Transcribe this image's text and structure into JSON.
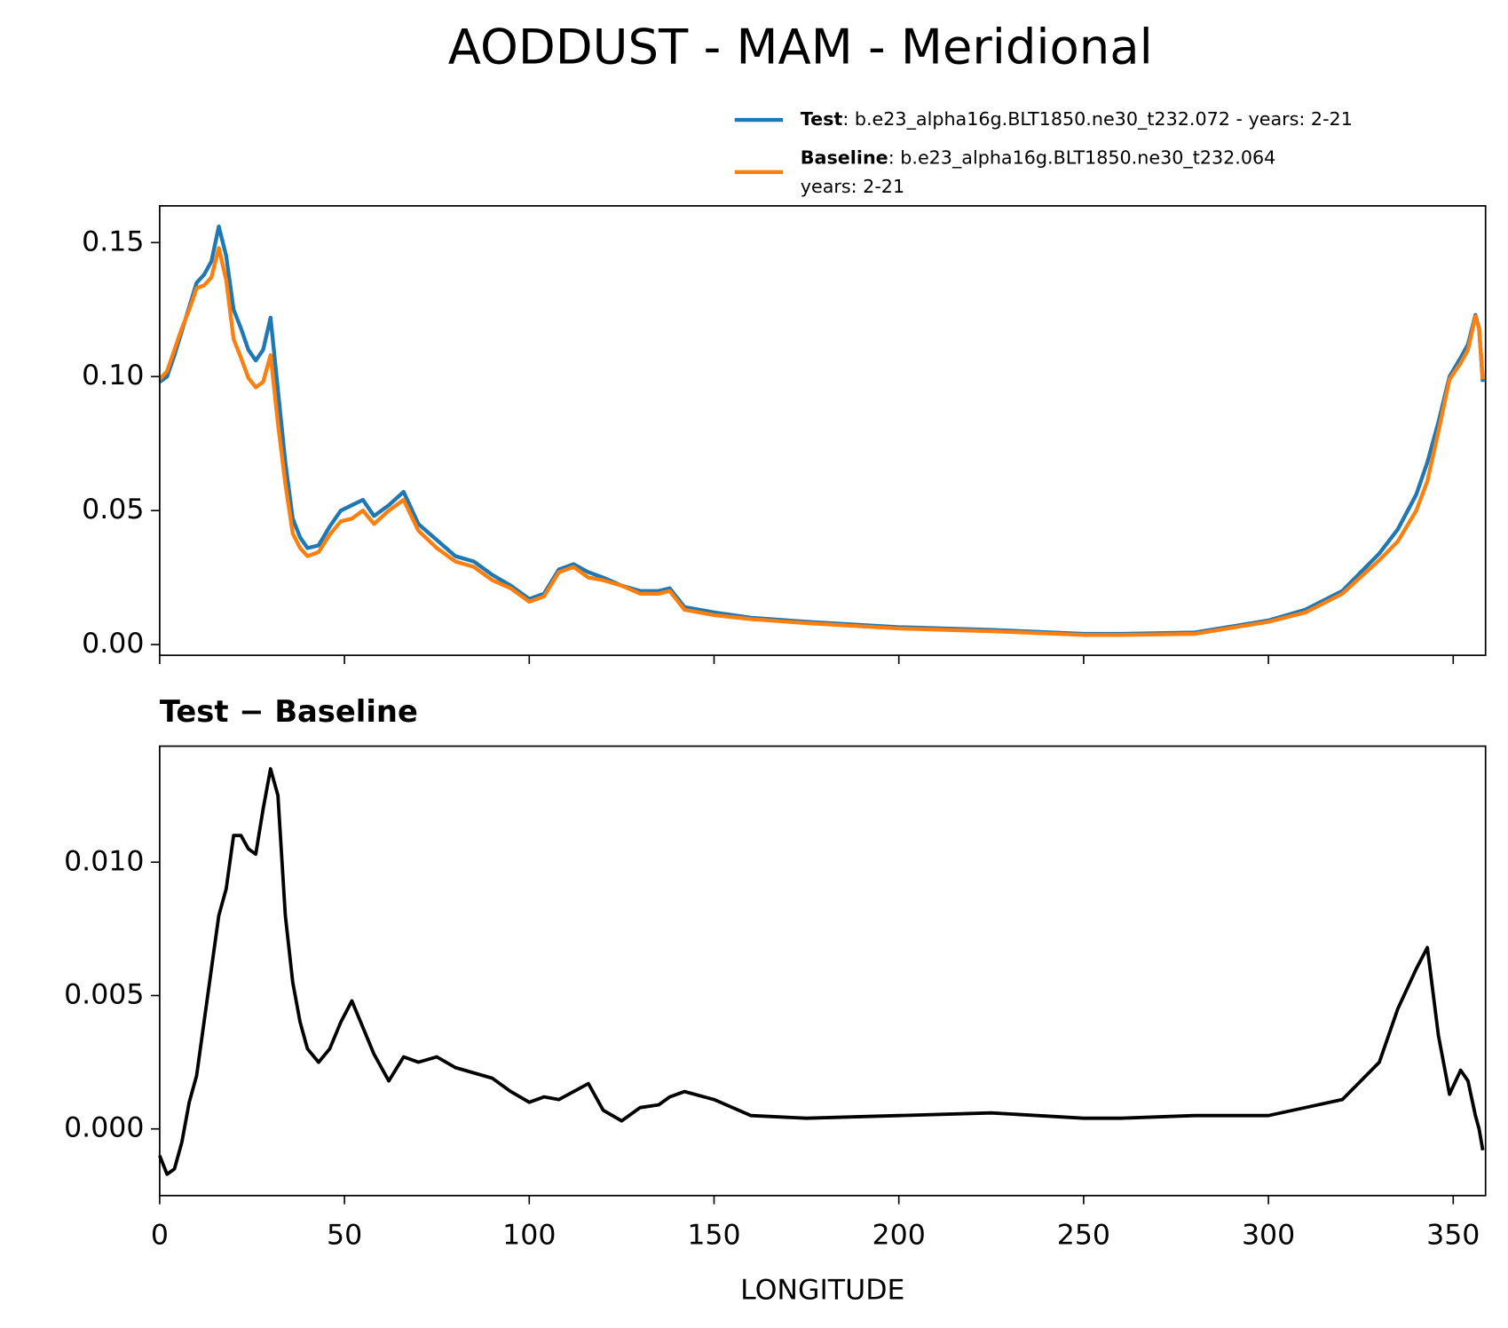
{
  "chart_data": [
    {
      "type": "line",
      "title": "AODDUST - MAM - Meridional",
      "x": [
        0,
        2,
        4,
        6,
        8,
        10,
        12,
        14,
        16,
        18,
        20,
        22,
        24,
        26,
        28,
        30,
        32,
        34,
        36,
        38,
        40,
        43,
        46,
        49,
        52,
        55,
        58,
        62,
        66,
        70,
        75,
        80,
        85,
        90,
        95,
        100,
        104,
        108,
        112,
        116,
        120,
        125,
        130,
        135,
        138,
        142,
        150,
        160,
        175,
        200,
        225,
        250,
        260,
        280,
        300,
        310,
        320,
        330,
        335,
        340,
        343,
        346,
        349,
        352,
        354,
        356,
        357,
        358
      ],
      "series": [
        {
          "name": "Test",
          "description": [
            ": b.e23_alpha16g.BLT1850.ne30_t232.072 - years: 2-21"
          ],
          "color": "#1f77b4",
          "values": [
            0.098,
            0.1,
            0.108,
            0.117,
            0.126,
            0.135,
            0.138,
            0.143,
            0.156,
            0.145,
            0.125,
            0.118,
            0.11,
            0.106,
            0.11,
            0.122,
            0.095,
            0.068,
            0.047,
            0.04,
            0.036,
            0.037,
            0.044,
            0.05,
            0.052,
            0.054,
            0.048,
            0.052,
            0.057,
            0.045,
            0.039,
            0.033,
            0.031,
            0.026,
            0.022,
            0.017,
            0.019,
            0.028,
            0.03,
            0.027,
            0.025,
            0.022,
            0.02,
            0.02,
            0.021,
            0.014,
            0.012,
            0.01,
            0.0085,
            0.0065,
            0.0055,
            0.004,
            0.004,
            0.0045,
            0.009,
            0.013,
            0.02,
            0.034,
            0.043,
            0.056,
            0.068,
            0.083,
            0.1,
            0.107,
            0.112,
            0.123,
            0.118,
            0.098
          ]
        },
        {
          "name": "Baseline",
          "description": [
            ": b.e23_alpha16g.BLT1850.ne30_t232.064",
            "years: 2-21"
          ],
          "color": "#ff7f0e",
          "values": [
            0.099,
            0.102,
            0.11,
            0.118,
            0.125,
            0.133,
            0.134,
            0.137,
            0.148,
            0.136,
            0.114,
            0.107,
            0.0995,
            0.096,
            0.098,
            0.108,
            0.0825,
            0.06,
            0.0415,
            0.036,
            0.033,
            0.0345,
            0.041,
            0.046,
            0.047,
            0.05,
            0.045,
            0.05,
            0.054,
            0.0425,
            0.036,
            0.031,
            0.029,
            0.024,
            0.021,
            0.016,
            0.018,
            0.027,
            0.029,
            0.025,
            0.024,
            0.022,
            0.019,
            0.019,
            0.02,
            0.013,
            0.011,
            0.0095,
            0.008,
            0.006,
            0.005,
            0.0036,
            0.0036,
            0.004,
            0.0085,
            0.012,
            0.019,
            0.0315,
            0.0385,
            0.05,
            0.061,
            0.0795,
            0.099,
            0.105,
            0.11,
            0.1225,
            0.118,
            0.099
          ]
        }
      ],
      "xlim": [
        0,
        358.75
      ],
      "ylim": [
        -0.004,
        0.1637
      ],
      "yticks": [
        {
          "value": 0,
          "label": "0.00"
        },
        {
          "value": 0.05,
          "label": "0.05"
        },
        {
          "value": 0.1,
          "label": "0.10"
        },
        {
          "value": 0.15,
          "label": "0.15"
        }
      ]
    },
    {
      "type": "line",
      "title": "Test − Baseline",
      "xlabel": "LONGITUDE",
      "x": [
        0,
        2,
        4,
        6,
        8,
        10,
        12,
        14,
        16,
        18,
        20,
        22,
        24,
        26,
        28,
        30,
        32,
        34,
        36,
        38,
        40,
        43,
        46,
        49,
        52,
        55,
        58,
        62,
        66,
        70,
        75,
        80,
        85,
        90,
        95,
        100,
        104,
        108,
        112,
        116,
        120,
        125,
        130,
        135,
        138,
        142,
        150,
        160,
        175,
        200,
        225,
        250,
        260,
        280,
        300,
        310,
        320,
        330,
        335,
        340,
        343,
        346,
        349,
        352,
        354,
        356,
        357,
        358
      ],
      "series": [
        {
          "color": "#000000",
          "values": [
            -0.001,
            -0.0017,
            -0.0015,
            -0.0005,
            0.001,
            0.002,
            0.004,
            0.006,
            0.008,
            0.009,
            0.011,
            0.011,
            0.0105,
            0.0103,
            0.012,
            0.0135,
            0.0125,
            0.008,
            0.0055,
            0.004,
            0.003,
            0.0025,
            0.003,
            0.004,
            0.0048,
            0.0038,
            0.0028,
            0.0018,
            0.0027,
            0.0025,
            0.0027,
            0.0023,
            0.0021,
            0.0019,
            0.0014,
            0.001,
            0.0012,
            0.0011,
            0.0014,
            0.0017,
            0.0007,
            0.0003,
            0.0008,
            0.0009,
            0.0012,
            0.0014,
            0.0011,
            0.0005,
            0.0004,
            0.0005,
            0.0006,
            0.0004,
            0.0004,
            0.0005,
            0.0005,
            0.0008,
            0.0011,
            0.0025,
            0.0045,
            0.006,
            0.0068,
            0.0035,
            0.0013,
            0.0022,
            0.0018,
            0.0005,
            0,
            -0.0008
          ]
        }
      ],
      "xlim": [
        0,
        358.75
      ],
      "ylim": [
        -0.0025,
        0.01435
      ],
      "xticks": [
        0,
        50,
        100,
        150,
        200,
        250,
        300,
        350
      ],
      "yticks": [
        {
          "value": 0,
          "label": "0.000"
        },
        {
          "value": 0.005,
          "label": "0.005"
        },
        {
          "value": 0.01,
          "label": "0.010"
        }
      ]
    }
  ]
}
